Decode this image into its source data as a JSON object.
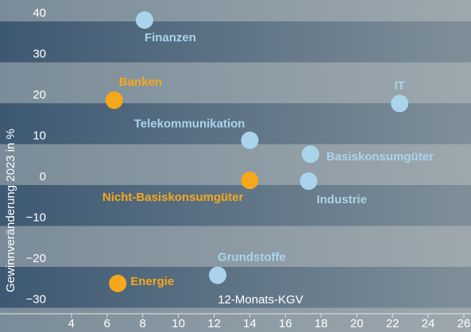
{
  "chart_data": {
    "type": "scatter",
    "xlabel": "12-Monats-KGV",
    "ylabel": "Gewinnveränderung 2023 in %",
    "labels": [
      "Finanzen",
      "Banken",
      "IT",
      "Telekommunikation",
      "Basiskonsumgüter",
      "Nicht-Basiskonsumgüter",
      "Industrie",
      "Grundstoffe",
      "Energie"
    ],
    "x": [
      8.1,
      6.4,
      22.4,
      14,
      17.4,
      14,
      17.3,
      12.2,
      6.6
    ],
    "values": [
      38.4,
      18.8,
      18,
      9,
      5.6,
      -0.8,
      -1,
      -24,
      -26
    ],
    "colors": [
      "#a9d4ec",
      "#f5a81c",
      "#a9d4ec",
      "#a9d4ec",
      "#a9d4ec",
      "#f5a81c",
      "#a9d4ec",
      "#a9d4ec",
      "#f5a81c"
    ],
    "xlim": [
      0,
      26.4
    ],
    "ylim": [
      -33.4,
      43.3
    ],
    "xticks": [
      4,
      6,
      8,
      10,
      12,
      14,
      16,
      18,
      20,
      22,
      24,
      26
    ],
    "yticks": [
      40,
      30,
      20,
      10,
      0,
      {
        "value": -10,
        "label": "−10"
      },
      {
        "value": -20,
        "label": "−20"
      },
      {
        "value": -30,
        "label": "−30"
      }
    ]
  }
}
